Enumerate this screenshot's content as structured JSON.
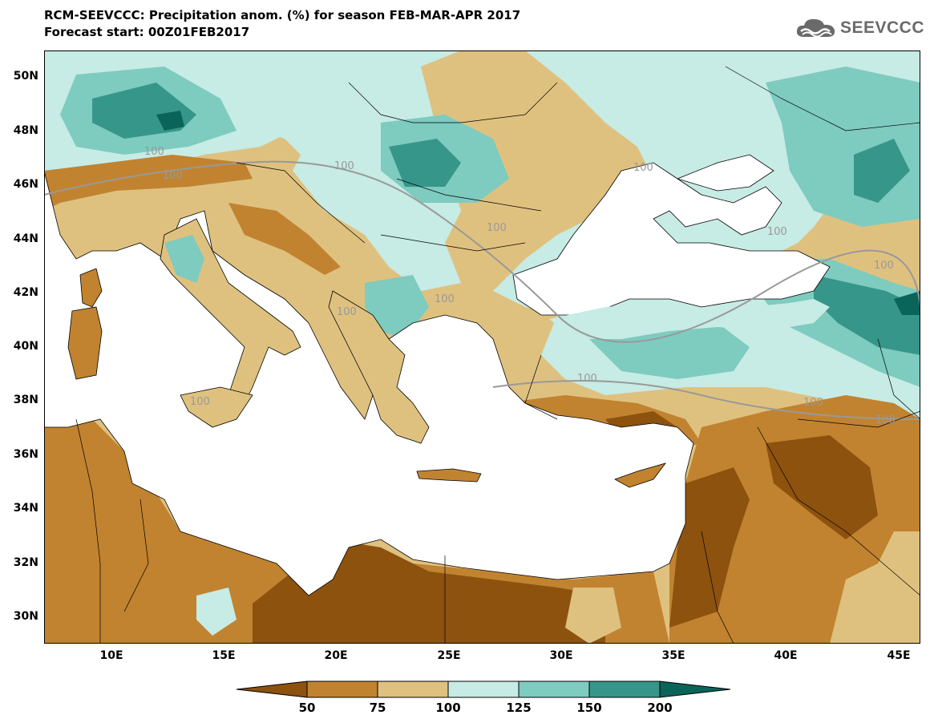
{
  "header": {
    "title": "RCM-SEEVCCC: Precipitation anom. (%) for season FEB-MAR-APR 2017",
    "subtitle": "Forecast start: 00Z01FEB2017",
    "logo_text": "SEEVCCC"
  },
  "map": {
    "lon_range": [
      7,
      46
    ],
    "lat_range": [
      29,
      51
    ],
    "y_ticks": [
      "50N",
      "48N",
      "46N",
      "44N",
      "42N",
      "40N",
      "38N",
      "36N",
      "34N",
      "32N",
      "30N"
    ],
    "x_ticks": [
      "10E",
      "15E",
      "20E",
      "25E",
      "30E",
      "35E",
      "40E",
      "45E"
    ],
    "contour_label": "100",
    "land_colors": {
      "lt50": "#8c520e",
      "50_75": "#c18330",
      "75_100": "#dfc17f",
      "100_125": "#c7ebe5",
      "125_150": "#7ecbbf",
      "150_200": "#36968a",
      "gt200": "#0a645a",
      "sea": "#ffffff"
    }
  },
  "colorbar": {
    "labels": [
      "50",
      "75",
      "100",
      "125",
      "150",
      "200"
    ]
  }
}
